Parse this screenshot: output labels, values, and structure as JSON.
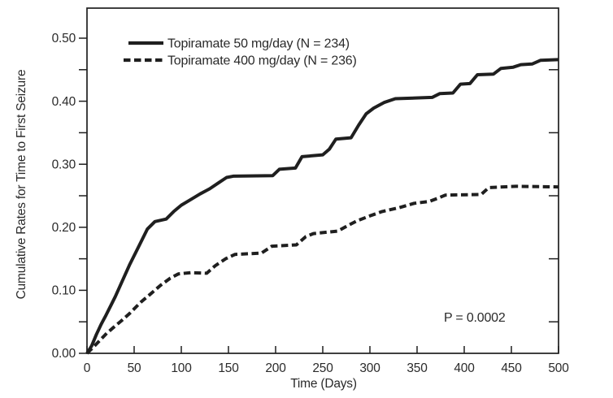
{
  "chart_data": {
    "type": "line",
    "title": "",
    "xlabel": "Time (Days)",
    "ylabel": "Cumulative Rates for Time to First Seizure",
    "xlim": [
      0,
      500
    ],
    "ylim": [
      0,
      0.5
    ],
    "grid": false,
    "legend_position": "inside-top-left",
    "x_ticks": [
      0,
      50,
      100,
      150,
      200,
      250,
      300,
      350,
      400,
      450,
      500
    ],
    "x_tick_labels": [
      "0",
      "50",
      "100",
      "150",
      "200",
      "250",
      "300",
      "350",
      "400",
      "450",
      "500"
    ],
    "y_ticks_major": [
      0,
      0.1,
      0.2,
      0.3,
      0.4,
      0.5
    ],
    "y_tick_labels": [
      "0.00",
      "0.10",
      "0.20",
      "0.30",
      "0.40",
      "0.50"
    ],
    "y_ticks_minor": [
      0.05,
      0.15,
      0.25,
      0.35,
      0.45
    ],
    "annotation": {
      "text": "P = 0.0002"
    },
    "series": [
      {
        "name": "Topiramate 50 mg/day (N = 234)",
        "line_style": "solid",
        "color": "#1f1f1f",
        "points": [
          [
            0,
            0
          ],
          [
            5,
            0.012
          ],
          [
            10,
            0.03
          ],
          [
            15,
            0.046
          ],
          [
            20,
            0.06
          ],
          [
            25,
            0.075
          ],
          [
            30,
            0.09
          ],
          [
            36,
            0.11
          ],
          [
            45,
            0.14
          ],
          [
            55,
            0.17
          ],
          [
            64,
            0.197
          ],
          [
            72,
            0.209
          ],
          [
            84,
            0.213
          ],
          [
            92,
            0.225
          ],
          [
            100,
            0.235
          ],
          [
            110,
            0.244
          ],
          [
            120,
            0.253
          ],
          [
            130,
            0.261
          ],
          [
            140,
            0.271
          ],
          [
            148,
            0.279
          ],
          [
            155,
            0.281
          ],
          [
            197,
            0.282
          ],
          [
            204,
            0.292
          ],
          [
            221,
            0.294
          ],
          [
            228,
            0.312
          ],
          [
            250,
            0.315
          ],
          [
            257,
            0.324
          ],
          [
            264,
            0.34
          ],
          [
            280,
            0.342
          ],
          [
            288,
            0.362
          ],
          [
            296,
            0.38
          ],
          [
            304,
            0.389
          ],
          [
            315,
            0.398
          ],
          [
            327,
            0.404
          ],
          [
            366,
            0.406
          ],
          [
            374,
            0.412
          ],
          [
            388,
            0.413
          ],
          [
            396,
            0.427
          ],
          [
            406,
            0.428
          ],
          [
            414,
            0.442
          ],
          [
            431,
            0.443
          ],
          [
            439,
            0.452
          ],
          [
            452,
            0.454
          ],
          [
            460,
            0.458
          ],
          [
            472,
            0.459
          ],
          [
            481,
            0.465
          ],
          [
            500,
            0.466
          ]
        ]
      },
      {
        "name": "Topiramate 400 mg/day (N = 236)",
        "line_style": "dashed",
        "color": "#1f1f1f",
        "points": [
          [
            0,
            0
          ],
          [
            7,
            0.01
          ],
          [
            14,
            0.021
          ],
          [
            21,
            0.032
          ],
          [
            28,
            0.041
          ],
          [
            36,
            0.051
          ],
          [
            45,
            0.063
          ],
          [
            57,
            0.081
          ],
          [
            68,
            0.095
          ],
          [
            78,
            0.108
          ],
          [
            88,
            0.119
          ],
          [
            97,
            0.126
          ],
          [
            110,
            0.128
          ],
          [
            127,
            0.127
          ],
          [
            136,
            0.139
          ],
          [
            147,
            0.15
          ],
          [
            157,
            0.157
          ],
          [
            185,
            0.159
          ],
          [
            196,
            0.17
          ],
          [
            222,
            0.172
          ],
          [
            232,
            0.185
          ],
          [
            240,
            0.19
          ],
          [
            266,
            0.194
          ],
          [
            277,
            0.203
          ],
          [
            286,
            0.21
          ],
          [
            300,
            0.218
          ],
          [
            313,
            0.225
          ],
          [
            331,
            0.231
          ],
          [
            347,
            0.238
          ],
          [
            363,
            0.241
          ],
          [
            372,
            0.246
          ],
          [
            380,
            0.251
          ],
          [
            418,
            0.252
          ],
          [
            426,
            0.263
          ],
          [
            455,
            0.265
          ],
          [
            500,
            0.264
          ]
        ]
      }
    ]
  },
  "colors": {
    "ink": "#1f1f1f",
    "text": "#2a2a2a",
    "background": "#ffffff"
  }
}
